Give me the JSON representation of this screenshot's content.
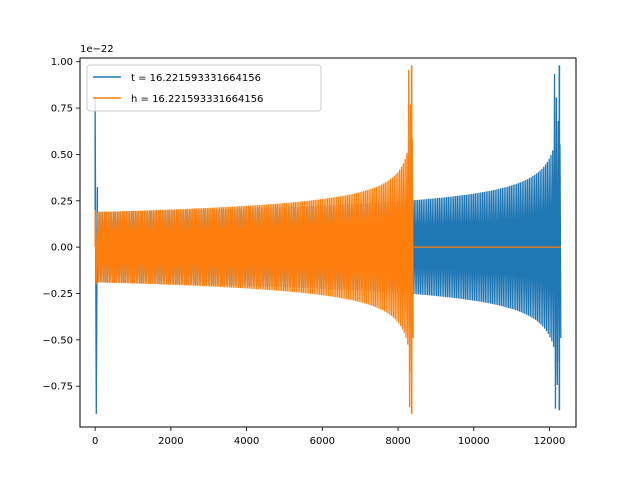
{
  "chart_data": {
    "type": "line",
    "title": "",
    "xlabel": "",
    "ylabel": "",
    "offset_text": "1e−22",
    "xlim": [
      -400,
      12700
    ],
    "ylim": [
      -0.97,
      1.02
    ],
    "y_scale_factor": 1e-22,
    "grid": false,
    "legend_position": "upper-left",
    "x_ticks": [
      0,
      2000,
      4000,
      6000,
      8000,
      10000,
      12000
    ],
    "x_tick_labels": [
      "0",
      "2000",
      "4000",
      "6000",
      "8000",
      "10000",
      "12000"
    ],
    "y_ticks": [
      -0.75,
      -0.5,
      -0.25,
      0.0,
      0.25,
      0.5,
      0.75,
      1.0
    ],
    "y_tick_labels": [
      "−0.75",
      "−0.50",
      "−0.25",
      "0.00",
      "0.25",
      "0.50",
      "0.75",
      "1.00"
    ],
    "series": [
      {
        "name": "t = 16.221593331664156",
        "color": "#1f77b4",
        "segments": [
          {
            "x_start": 0,
            "x_end": 60,
            "min": -0.9,
            "max": 0.81,
            "kind": "spike"
          },
          {
            "x_start": 60,
            "x_end": 12300,
            "envelope_start": 0.19,
            "envelope_end": 0.98,
            "kind": "chirp"
          }
        ],
        "x_max": 12300,
        "peak": 0.98,
        "trough": -0.88
      },
      {
        "name": "h = 16.221593331664156",
        "color": "#ff7f0e",
        "segments": [
          {
            "x_start": 0,
            "x_end": 60,
            "min": -0.2,
            "max": 0.2,
            "kind": "spike"
          },
          {
            "x_start": 60,
            "x_end": 8400,
            "envelope_start": 0.19,
            "envelope_end": 0.98,
            "kind": "chirp"
          },
          {
            "x_start": 8400,
            "x_end": 12300,
            "value": 0.0,
            "kind": "flat"
          }
        ],
        "x_max": 12300,
        "peak": 0.98,
        "trough": -0.9
      }
    ]
  }
}
